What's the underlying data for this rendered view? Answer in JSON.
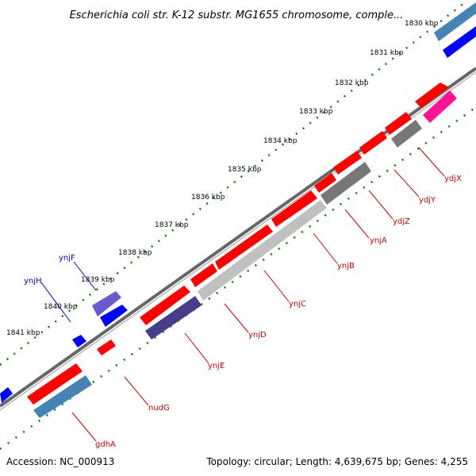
{
  "title": "Escherichia coli str. K-12 substr. MG1655 chromosome, comple...",
  "footer": {
    "accession": "Accession: NC_000913",
    "topology": "Topology: circular; Length: 4,639,675 bp; Genes: 4,255"
  },
  "scale_labels": [
    "1830 kbp",
    "1831 kbp",
    "1832 kbp",
    "1833 kbp",
    "1834 kbp",
    "1835 kbp",
    "1836 kbp",
    "1837 kbp",
    "1838 kbp",
    "1839 kbp",
    "1840 kbp",
    "1841 kbp"
  ],
  "gene_labels": [
    {
      "name": "ydjX",
      "color": "#cc0000"
    },
    {
      "name": "ydjY",
      "color": "#cc0000"
    },
    {
      "name": "ydjZ",
      "color": "#cc0000"
    },
    {
      "name": "ynjA",
      "color": "#cc0000"
    },
    {
      "name": "ynjB",
      "color": "#cc0000"
    },
    {
      "name": "ynjC",
      "color": "#cc0000"
    },
    {
      "name": "ynjD",
      "color": "#cc0000"
    },
    {
      "name": "ynjE",
      "color": "#cc0000"
    },
    {
      "name": "nudG",
      "color": "#cc0000"
    },
    {
      "name": "gdhA",
      "color": "#cc0000"
    },
    {
      "name": "ynjF",
      "color": "#0000cc"
    },
    {
      "name": "ynjH",
      "color": "#0000cc"
    }
  ],
  "colors": {
    "red": "#ff0000",
    "blue": "#0000ff",
    "steel_blue": "#4682b4",
    "slate_blue": "#6a5acd",
    "dark_slate_blue": "#483d8b",
    "gray": "#777777",
    "light_gray": "#c0c0c0",
    "pink": "#ff1493",
    "green_ticks": "#008000",
    "backbone": "#666666"
  }
}
